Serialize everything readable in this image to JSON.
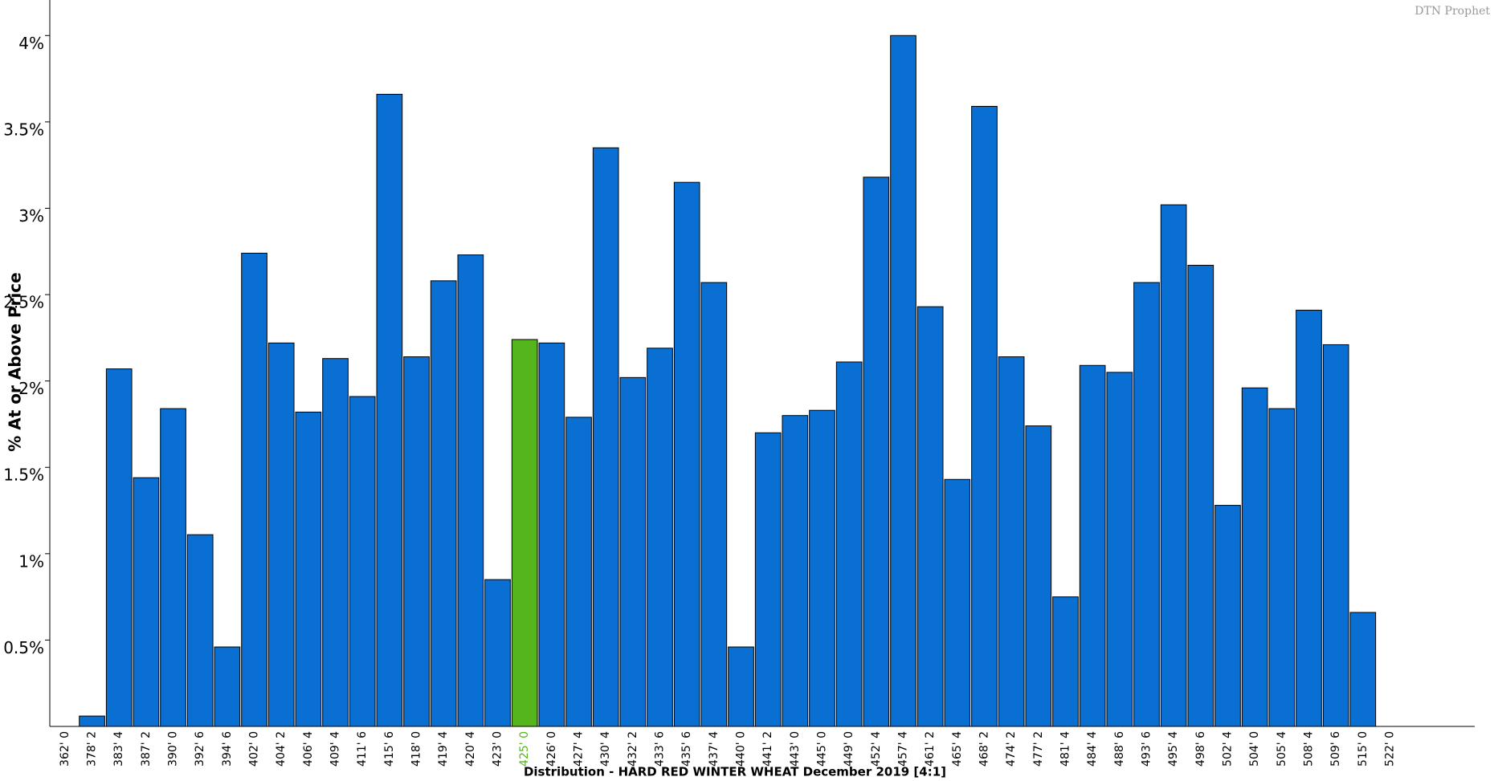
{
  "chart_data": {
    "type": "bar",
    "title": "Distribution - HARD RED WINTER WHEAT December 2019  [4:1]",
    "y_label": "% At or Above Price",
    "brand": "DTN Prophet",
    "categories": [
      "362' 0",
      "378' 2",
      "383' 4",
      "387' 2",
      "390' 0",
      "392' 6",
      "394' 6",
      "402' 0",
      "404' 2",
      "406' 4",
      "409' 4",
      "411' 6",
      "415' 6",
      "418' 0",
      "419' 4",
      "420' 4",
      "423' 0",
      "425' 0",
      "426' 0",
      "427' 4",
      "430' 4",
      "432' 2",
      "433' 6",
      "435' 6",
      "437' 4",
      "440' 0",
      "441' 2",
      "443' 0",
      "445' 0",
      "449' 0",
      "452' 4",
      "457' 4",
      "461' 2",
      "465' 4",
      "468' 2",
      "474' 2",
      "477' 2",
      "481' 4",
      "484' 4",
      "488' 6",
      "493' 6",
      "495' 4",
      "498' 6",
      "502' 4",
      "504' 0",
      "505' 4",
      "508' 4",
      "509' 6",
      "515' 0",
      "522' 0"
    ],
    "values": [
      0,
      0.06,
      2.07,
      1.44,
      1.84,
      1.11,
      0.46,
      2.74,
      2.22,
      1.82,
      2.13,
      1.91,
      3.66,
      2.14,
      2.58,
      2.73,
      0.85,
      2.24,
      2.22,
      1.79,
      3.35,
      2.02,
      2.19,
      3.15,
      2.57,
      0.46,
      1.7,
      1.8,
      1.83,
      2.11,
      3.18,
      4.0,
      2.43,
      1.43,
      3.59,
      2.14,
      1.74,
      0.75,
      2.09,
      2.05,
      2.57,
      3.02,
      2.67,
      1.28,
      1.96,
      1.84,
      2.41,
      2.21,
      0.66,
      0
    ],
    "color": "#0a6fd2",
    "highlight_index": 17,
    "highlight_color": "#55b51c",
    "ylim": [
      0,
      4.2
    ],
    "yticks": [
      {
        "value": 0.5,
        "label": "0.5%"
      },
      {
        "value": 1,
        "label": "1%"
      },
      {
        "value": 1.5,
        "label": "1.5%"
      },
      {
        "value": 2,
        "label": "2%"
      },
      {
        "value": 2.5,
        "label": "2.5%"
      },
      {
        "value": 3,
        "label": "3%"
      },
      {
        "value": 3.5,
        "label": "3.5%"
      },
      {
        "value": 4,
        "label": "4%"
      }
    ],
    "grid": false
  }
}
